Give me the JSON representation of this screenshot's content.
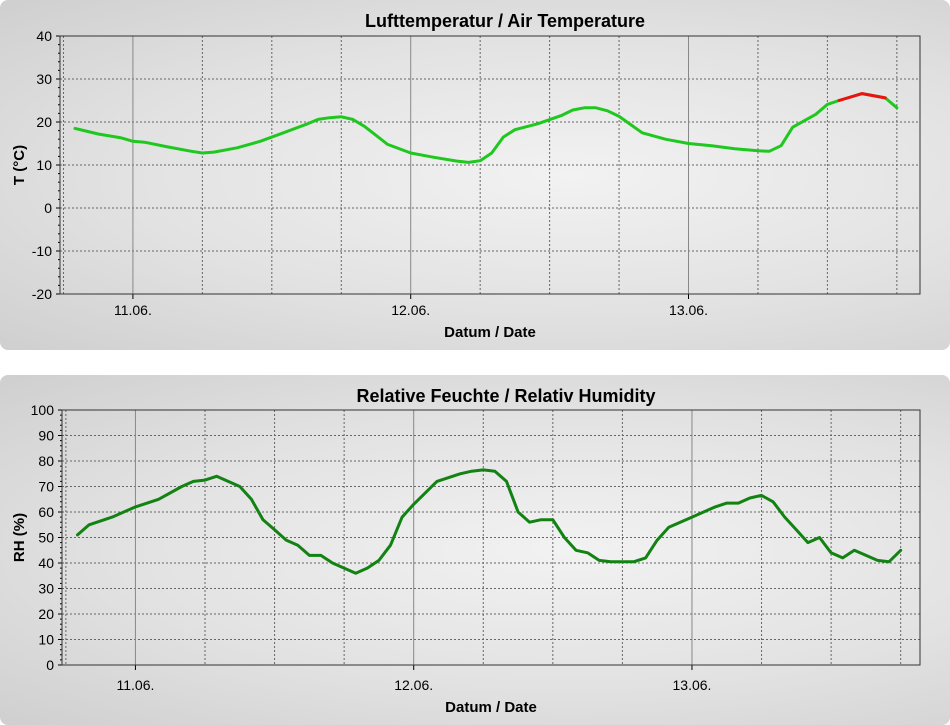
{
  "chart_data": [
    {
      "type": "line",
      "title": "Lufttemperatur / Air Temperature",
      "xlabel": "Datum / Date",
      "ylabel": "T (°C)",
      "ylim": [
        -20,
        40
      ],
      "yticks": [
        "40",
        "30",
        "20",
        "10",
        "0",
        "-10",
        "-20"
      ],
      "xticks": [
        "11.06.",
        "12.06.",
        "13.06."
      ],
      "grid": true,
      "colors": {
        "line": "#1ec81e",
        "highlight": "#ee1111"
      },
      "series": [
        {
          "x": [
            "10.06. 19:00",
            "10.06. 21:00",
            "10.06. 23:00",
            "11.06. 00:00",
            "11.06. 01:00",
            "11.06. 03:00",
            "11.06. 05:00",
            "11.06. 06:00",
            "11.06. 07:00",
            "11.06. 09:00",
            "11.06. 11:00",
            "11.06. 13:00",
            "11.06. 15:00",
            "11.06. 16:00",
            "11.06. 17:00",
            "11.06. 18:00",
            "11.06. 19:00",
            "11.06. 20:00",
            "11.06. 22:00",
            "12.06. 00:00",
            "12.06. 02:00",
            "12.06. 04:00",
            "12.06. 05:00",
            "12.06. 06:00",
            "12.06. 07:00",
            "12.06. 08:00",
            "12.06. 09:00",
            "12.06. 11:00",
            "12.06. 13:00",
            "12.06. 14:00",
            "12.06. 15:00",
            "12.06. 16:00",
            "12.06. 17:00",
            "12.06. 18:00",
            "12.06. 20:00",
            "12.06. 22:00",
            "13.06. 00:00",
            "13.06. 02:00",
            "13.06. 04:00",
            "13.06. 06:00",
            "13.06. 07:00",
            "13.06. 08:00",
            "13.06. 09:00",
            "13.06. 11:00",
            "13.06. 12:00",
            "13.06. 13:00",
            "13.06. 15:00",
            "13.06. 17:00",
            "13.06. 18:00"
          ],
          "values": [
            18.5,
            17.2,
            16.3,
            15.5,
            15.3,
            14.2,
            13.2,
            12.8,
            13.0,
            14.0,
            15.5,
            17.5,
            19.5,
            20.6,
            21.0,
            21.2,
            20.6,
            19.0,
            14.8,
            12.8,
            11.8,
            10.9,
            10.6,
            11.0,
            12.8,
            16.5,
            18.2,
            19.6,
            21.5,
            22.8,
            23.3,
            23.3,
            22.6,
            21.3,
            17.5,
            16.0,
            15.0,
            14.5,
            13.8,
            13.3,
            13.2,
            14.5,
            18.8,
            21.8,
            24.1,
            25.0,
            26.6,
            25.6,
            23.3
          ]
        }
      ]
    },
    {
      "type": "line",
      "title": "Relative Feuchte / Relativ Humidity",
      "xlabel": "Datum / Date",
      "ylabel": "RH (%)",
      "ylim": [
        0,
        100
      ],
      "yticks": [
        "100",
        "90",
        "80",
        "70",
        "60",
        "50",
        "40",
        "30",
        "20",
        "10",
        "0"
      ],
      "xticks": [
        "11.06.",
        "12.06.",
        "13.06."
      ],
      "grid": true,
      "colors": {
        "line": "#128212"
      },
      "series": [
        {
          "x": [
            "10.06. 19:00",
            "10.06. 20:00",
            "10.06. 22:00",
            "11.06. 00:00",
            "11.06. 02:00",
            "11.06. 04:00",
            "11.06. 05:00",
            "11.06. 06:00",
            "11.06. 07:00",
            "11.06. 09:00",
            "11.06. 10:00",
            "11.06. 11:00",
            "11.06. 12:00",
            "11.06. 13:00",
            "11.06. 14:00",
            "11.06. 15:00",
            "11.06. 16:00",
            "11.06. 17:00",
            "11.06. 18:00",
            "11.06. 19:00",
            "11.06. 20:00",
            "11.06. 21:00",
            "11.06. 22:00",
            "11.06. 23:00",
            "12.06. 00:00",
            "12.06. 02:00",
            "12.06. 04:00",
            "12.06. 05:00",
            "12.06. 06:00",
            "12.06. 07:00",
            "12.06. 08:00",
            "12.06. 09:00",
            "12.06. 10:00",
            "12.06. 11:00",
            "12.06. 12:00",
            "12.06. 13:00",
            "12.06. 14:00",
            "12.06. 15:00",
            "12.06. 16:00",
            "12.06. 17:00",
            "12.06. 18:00",
            "12.06. 19:00",
            "12.06. 20:00",
            "12.06. 21:00",
            "12.06. 22:00",
            "13.06. 00:00",
            "13.06. 02:00",
            "13.06. 03:00",
            "13.06. 04:00",
            "13.06. 05:00",
            "13.06. 06:00",
            "13.06. 07:00",
            "13.06. 08:00",
            "13.06. 09:00",
            "13.06. 10:00",
            "13.06. 11:00",
            "13.06. 12:00",
            "13.06. 13:00",
            "13.06. 14:00",
            "13.06. 16:00",
            "13.06. 17:00",
            "13.06. 18:00"
          ],
          "values": [
            51,
            55,
            58,
            62,
            65,
            70,
            72,
            72.5,
            74,
            70,
            65,
            57,
            53,
            49,
            47,
            43,
            43,
            40,
            38,
            36,
            38,
            41,
            47,
            58,
            63,
            72,
            75,
            76,
            76.5,
            76,
            72,
            60,
            56,
            57,
            57,
            50,
            45,
            44,
            41,
            40.5,
            40.5,
            40.5,
            42,
            49,
            54,
            58,
            62,
            63.5,
            63.5,
            65.5,
            66.5,
            64,
            58,
            53,
            48,
            50,
            44,
            42,
            45,
            41,
            40.5,
            45
          ]
        }
      ]
    }
  ]
}
